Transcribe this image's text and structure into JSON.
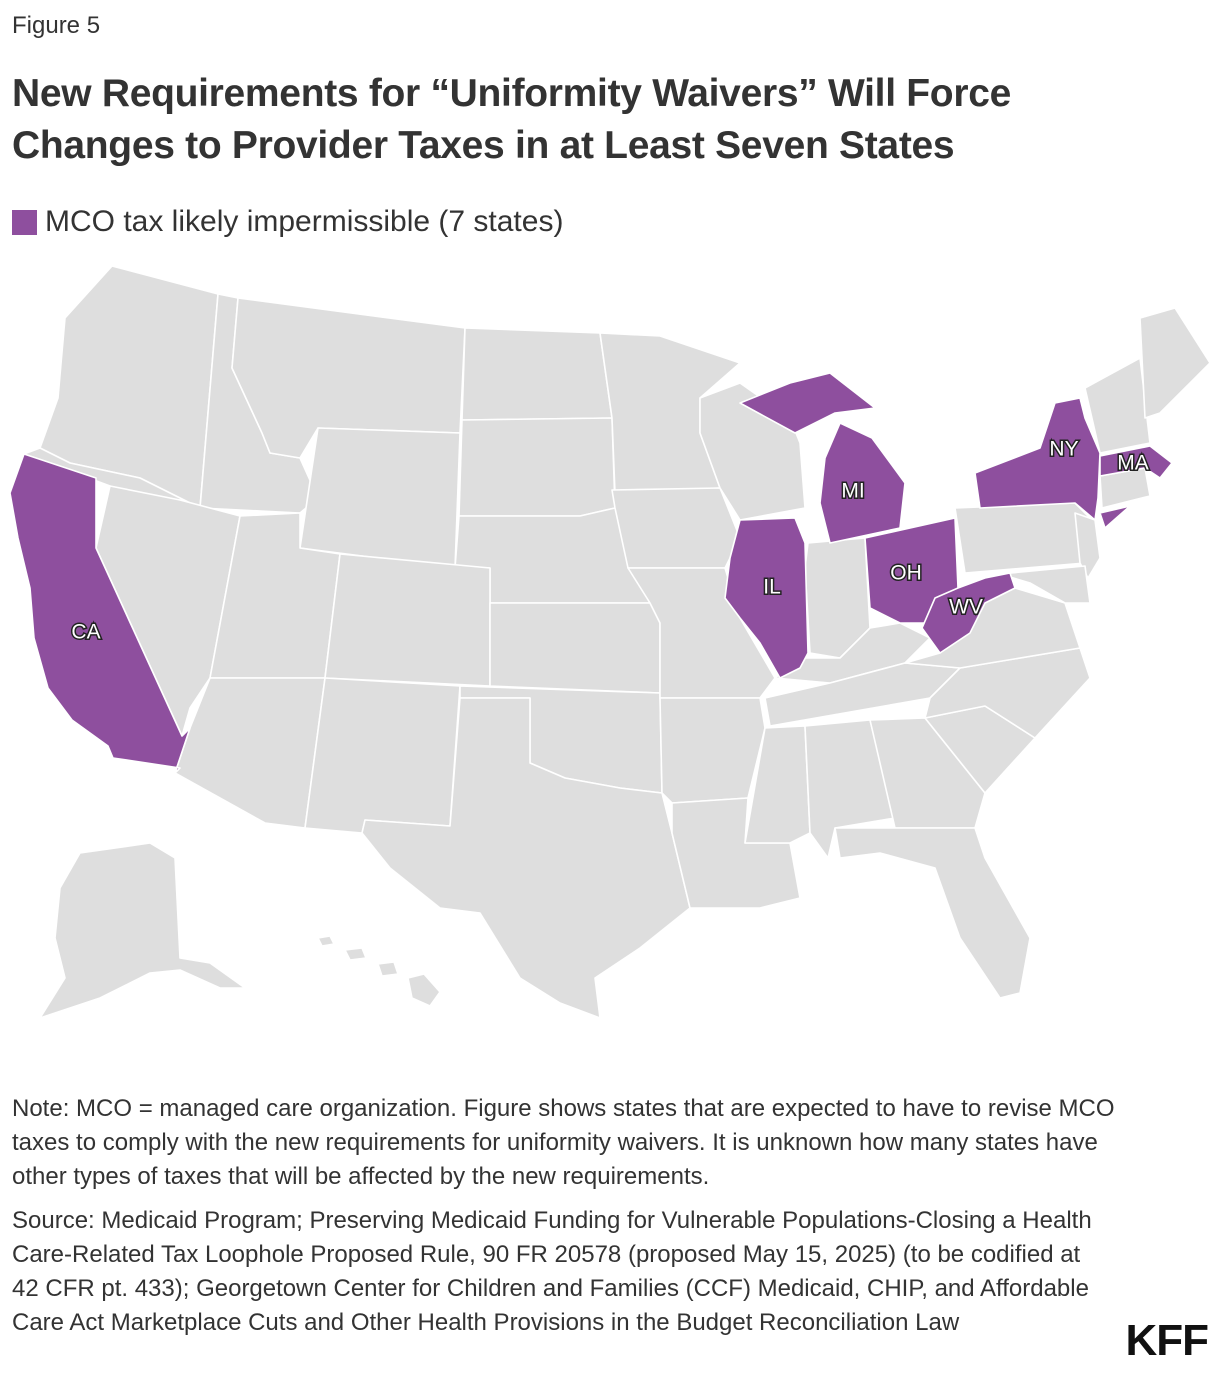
{
  "figure_label": "Figure 5",
  "title": "New Requirements for “Uniformity Waivers” Will Force Changes to Provider Taxes in at Least Seven States",
  "legend": {
    "label": "MCO tax likely impermissible (7 states)",
    "color": "#8e4f9e"
  },
  "colors": {
    "highlight": "#8e4f9e",
    "other": "#dedede",
    "border": "#ffffff"
  },
  "map": {
    "highlighted_states": [
      {
        "abbr": "CA"
      },
      {
        "abbr": "IL"
      },
      {
        "abbr": "MI"
      },
      {
        "abbr": "OH"
      },
      {
        "abbr": "WV"
      },
      {
        "abbr": "NY"
      },
      {
        "abbr": "MA"
      }
    ]
  },
  "note": "Note: MCO = managed care organization. Figure shows states that are expected to have to revise MCO taxes to comply with the new requirements for uniformity waivers. It is unknown how many states have other types of taxes that will be affected by the new requirements.",
  "source": "Source: Medicaid Program; Preserving Medicaid Funding for Vulnerable Populations-Closing a Health Care-Related Tax Loophole Proposed Rule, 90 FR 20578 (proposed May 15, 2025) (to be codified at 42 CFR pt. 433); Georgetown Center for Children and Families (CCF) Medicaid, CHIP, and Affordable Care Act Marketplace Cuts and Other Health Provisions in the Budget Reconciliation Law",
  "logo": "KFF"
}
